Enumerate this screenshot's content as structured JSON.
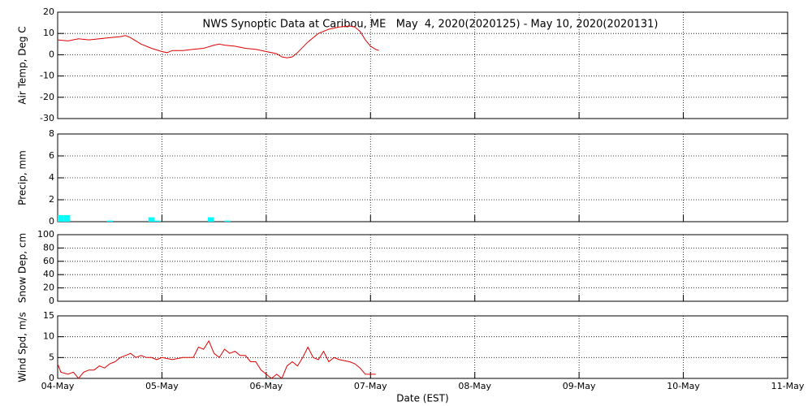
{
  "chart_data": [
    {
      "type": "line",
      "title": "NWS Synoptic Data at Caribou, ME   May  4, 2020(2020125) - May 10, 2020(2020131)",
      "ylabel": "Air Temp, Deg C",
      "color": "#dd0000",
      "grid": true,
      "xlim": [
        0,
        7
      ],
      "xticks": [
        0,
        1,
        2,
        3,
        4,
        5,
        6,
        7
      ],
      "ylim": [
        -30,
        20
      ],
      "yticks": [
        -30,
        -20,
        -10,
        0,
        10,
        20
      ],
      "x": [
        0,
        0.1,
        0.2,
        0.3,
        0.4,
        0.5,
        0.6,
        0.65,
        0.7,
        0.8,
        0.9,
        1.0,
        1.05,
        1.1,
        1.2,
        1.3,
        1.4,
        1.5,
        1.55,
        1.6,
        1.7,
        1.8,
        1.9,
        2.0,
        2.1,
        2.15,
        2.2,
        2.25,
        2.3,
        2.4,
        2.5,
        2.6,
        2.7,
        2.8,
        2.85,
        2.9,
        2.95,
        3.0,
        3.05,
        3.08
      ],
      "values": [
        7,
        6.5,
        7.5,
        7,
        7.5,
        8,
        8.5,
        9,
        8,
        5,
        3,
        1.5,
        1,
        2,
        2,
        2.5,
        3,
        4.5,
        5,
        4.5,
        4,
        3,
        2.5,
        1.5,
        0.5,
        -1,
        -1.5,
        -1,
        1,
        6,
        10,
        12,
        13,
        13.5,
        13,
        11,
        7,
        4,
        2.5,
        2
      ]
    },
    {
      "type": "bar",
      "ylabel": "Precip, mm",
      "color": "#00ffff",
      "grid": true,
      "xlim": [
        0,
        7
      ],
      "xticks": [
        0,
        1,
        2,
        3,
        4,
        5,
        6,
        7
      ],
      "ylim": [
        0,
        8
      ],
      "yticks": [
        0,
        2,
        4,
        6,
        8
      ],
      "x": [
        0.03,
        0.09,
        0.5,
        0.9,
        0.96,
        1.47,
        1.63
      ],
      "values": [
        0.6,
        0.6,
        0.1,
        0.4,
        0.1,
        0.4,
        0.1
      ]
    },
    {
      "type": "line",
      "ylabel": "Snow Dep, cm",
      "grid": true,
      "xlim": [
        0,
        7
      ],
      "xticks": [
        0,
        1,
        2,
        3,
        4,
        5,
        6,
        7
      ],
      "ylim": [
        0,
        100
      ],
      "yticks": [
        0,
        20,
        40,
        60,
        80,
        100
      ]
    },
    {
      "type": "line",
      "ylabel": "Wind Spd, m/s",
      "xlabel": "Date (EST)",
      "color": "#dd0000",
      "grid": true,
      "xlim": [
        0,
        7
      ],
      "xticks": [
        {
          "value": 0,
          "label": "04-May"
        },
        {
          "value": 1,
          "label": "05-May"
        },
        {
          "value": 2,
          "label": "06-May"
        },
        {
          "value": 3,
          "label": "07-May"
        },
        {
          "value": 4,
          "label": "08-May"
        },
        {
          "value": 5,
          "label": "09-May"
        },
        {
          "value": 6,
          "label": "10-May"
        },
        {
          "value": 7,
          "label": "11-May"
        }
      ],
      "ylim": [
        0,
        15
      ],
      "yticks": [
        0,
        5,
        10,
        15
      ],
      "x": [
        0,
        0.03,
        0.1,
        0.15,
        0.2,
        0.25,
        0.3,
        0.35,
        0.4,
        0.45,
        0.5,
        0.55,
        0.6,
        0.65,
        0.7,
        0.75,
        0.8,
        0.85,
        0.9,
        0.95,
        1.0,
        1.1,
        1.2,
        1.3,
        1.35,
        1.4,
        1.45,
        1.5,
        1.55,
        1.6,
        1.65,
        1.7,
        1.75,
        1.8,
        1.85,
        1.9,
        1.95,
        2.0,
        2.05,
        2.1,
        2.15,
        2.2,
        2.25,
        2.3,
        2.35,
        2.4,
        2.45,
        2.5,
        2.55,
        2.6,
        2.65,
        2.7,
        2.8,
        2.85,
        2.9,
        2.95,
        3.0,
        3.05
      ],
      "values": [
        3.5,
        1.5,
        1,
        1.5,
        0,
        1.5,
        2,
        2,
        3,
        2.5,
        3.5,
        4,
        5,
        5.5,
        6,
        5,
        5.5,
        5,
        5,
        4.5,
        5,
        4.5,
        5,
        5,
        7.5,
        7,
        9,
        6,
        5,
        7,
        6,
        6.5,
        5.5,
        5.5,
        4,
        4,
        2,
        1,
        0,
        1,
        0,
        3,
        4,
        3,
        5,
        7.5,
        5,
        4.5,
        6.5,
        4,
        5,
        4.5,
        4,
        3.5,
        2.5,
        1,
        1,
        1
      ]
    }
  ]
}
